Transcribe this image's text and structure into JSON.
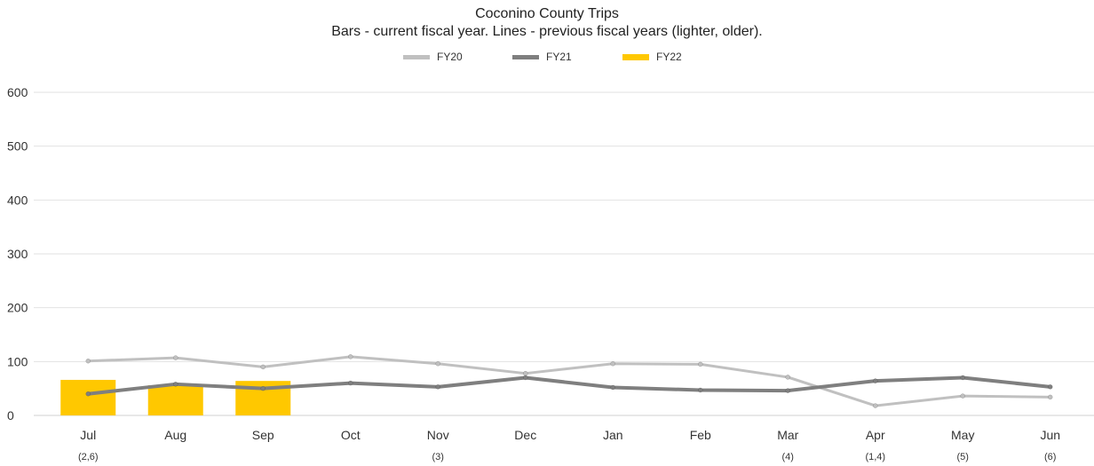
{
  "chart_data": {
    "type": "bar",
    "title": "Coconino County Trips",
    "subtitle": "Bars - current fiscal year. Lines - previous fiscal years (lighter, older).",
    "categories": [
      "Jul",
      "Aug",
      "Sep",
      "Oct",
      "Nov",
      "Dec",
      "Jan",
      "Feb",
      "Mar",
      "Apr",
      "May",
      "Jun"
    ],
    "category_notes": [
      "(2,6)",
      "",
      "",
      "",
      "(3)",
      "",
      "",
      "",
      "(4)",
      "(1,4)",
      "(5)",
      "(6)"
    ],
    "yticks": [
      0,
      100,
      200,
      300,
      400,
      500,
      600
    ],
    "ylim": [
      0,
      600
    ],
    "grid": true,
    "legend_position": "top-center",
    "series": [
      {
        "name": "FY20",
        "type": "line",
        "color": "#c0c0c0",
        "values": [
          101,
          107,
          90,
          109,
          96,
          78,
          96,
          95,
          71,
          18,
          36,
          34
        ]
      },
      {
        "name": "FY21",
        "type": "line",
        "color": "#7f7f7f",
        "values": [
          40,
          58,
          50,
          60,
          53,
          70,
          52,
          47,
          46,
          64,
          70,
          53
        ]
      },
      {
        "name": "FY22",
        "type": "bar",
        "color": "#ffc800",
        "values": [
          66,
          56,
          64,
          null,
          null,
          null,
          null,
          null,
          null,
          null,
          null,
          null
        ]
      }
    ]
  }
}
